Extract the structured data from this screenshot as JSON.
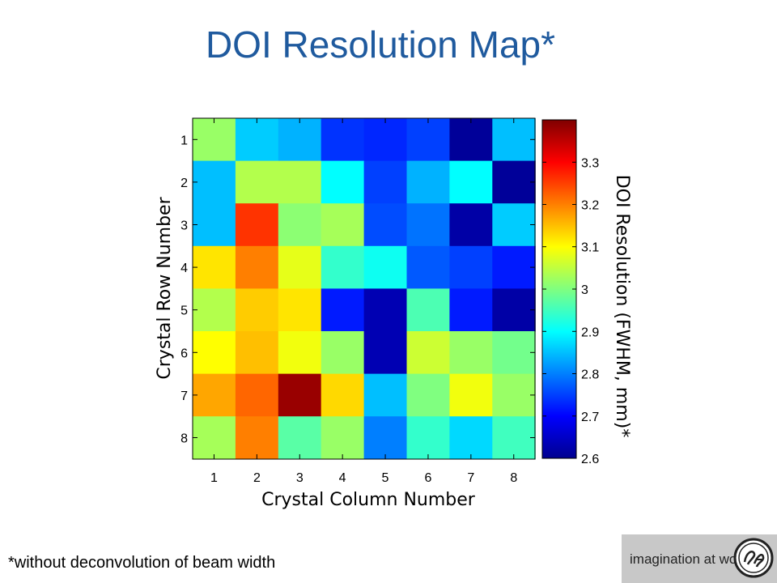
{
  "title": "DOI Resolution Map*",
  "footnote": "*without deconvolution of beam width",
  "logo": {
    "tagline": "imagination at work",
    "mark_text": "GE",
    "icon": "ge-monogram-icon"
  },
  "chart_data": {
    "type": "heatmap",
    "xlabel": "Crystal Column Number",
    "ylabel": "Crystal Row Number",
    "colorbar_label": "DOI Resolution  (FWHM, mm)*",
    "x": [
      1,
      2,
      3,
      4,
      5,
      6,
      7,
      8
    ],
    "y": [
      1,
      2,
      3,
      4,
      5,
      6,
      7,
      8
    ],
    "colormap": "jet",
    "clim": [
      2.6,
      3.4
    ],
    "colorbar_ticks": [
      2.6,
      2.7,
      2.8,
      2.9,
      3,
      3.1,
      3.2,
      3.3
    ],
    "z": [
      [
        3.02,
        2.86,
        2.84,
        2.74,
        2.73,
        2.75,
        2.62,
        2.85
      ],
      [
        2.85,
        3.04,
        3.04,
        2.9,
        2.75,
        2.84,
        2.9,
        2.62
      ],
      [
        2.85,
        3.26,
        3.01,
        3.03,
        2.76,
        2.79,
        2.63,
        2.86
      ],
      [
        3.12,
        3.2,
        3.08,
        2.94,
        2.91,
        2.77,
        2.75,
        2.72
      ],
      [
        3.04,
        3.14,
        3.12,
        2.72,
        2.64,
        2.96,
        2.72,
        2.63
      ],
      [
        3.1,
        3.15,
        3.09,
        3.02,
        2.64,
        3.06,
        3.02,
        2.99
      ],
      [
        3.17,
        3.22,
        3.38,
        3.13,
        2.85,
        3.0,
        3.09,
        3.02
      ],
      [
        3.03,
        3.2,
        2.97,
        3.02,
        2.8,
        2.94,
        2.87,
        2.95
      ]
    ]
  }
}
